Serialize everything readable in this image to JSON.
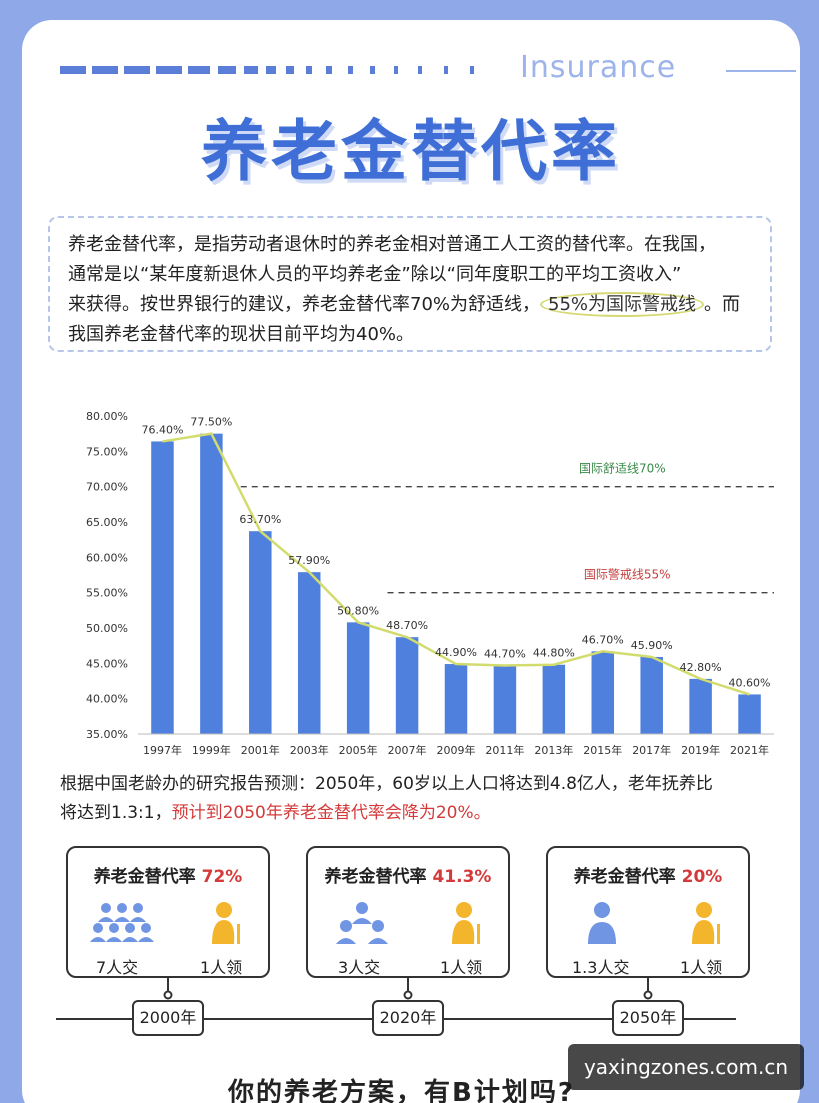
{
  "header": {
    "brand": "Insurance",
    "title": "养老金替代率"
  },
  "intro": {
    "line1": "养老金替代率，是指劳动者退休时的养老金相对普通工人工资的替代率。在我国，",
    "line2": "通常是以“某年度新退休人员的平均养老金”除以“同年度职工的平均工资收入”",
    "line3_before": "来获得。按世界银行的建议，养老金替代率70%为舒适线，",
    "line3_highlight": "55%为国际警戒线",
    "line3_after": "。而",
    "line4": "我国养老金替代率的现状目前平均为40%。"
  },
  "chart_data": {
    "type": "bar",
    "categories": [
      "1997年",
      "1999年",
      "2001年",
      "2003年",
      "2005年",
      "2007年",
      "2009年",
      "2011年",
      "2013年",
      "2015年",
      "2017年",
      "2019年",
      "2021年"
    ],
    "values": [
      76.4,
      77.5,
      63.7,
      57.9,
      50.8,
      48.7,
      44.9,
      44.7,
      44.8,
      46.7,
      45.9,
      42.8,
      40.6
    ],
    "value_labels": [
      "76.40%",
      "77.50%",
      "63.70%",
      "57.90%",
      "50.80%",
      "48.70%",
      "44.90%",
      "44.70%",
      "44.80%",
      "46.70%",
      "45.90%",
      "42.80%",
      "40.60%"
    ],
    "yticks": [
      "35.00%",
      "40.00%",
      "45.00%",
      "50.00%",
      "55.00%",
      "60.00%",
      "65.00%",
      "70.00%",
      "75.00%",
      "80.00%"
    ],
    "ylim": [
      35,
      80
    ],
    "reference_lines": [
      {
        "label": "国际舒适线70%",
        "value": 70,
        "color": "#3a8a4a"
      },
      {
        "label": "国际警戒线55%",
        "value": 55,
        "color": "#c44040"
      }
    ],
    "bar_color": "#4f80dd",
    "trend_color": "#d2dc6e"
  },
  "forecast": {
    "line1": "根据中国老龄办的研究报告预测：2050年，60岁以上人口将达到4.8亿人，老年抚养比",
    "line2_before": "将达到1.3:1，",
    "line2_red": "预计到2050年养老金替代率会降为20%。"
  },
  "scenarios": [
    {
      "title": "养老金替代率",
      "pct": "72%",
      "payers": "7人交",
      "receivers": "1人领",
      "year": "2000年"
    },
    {
      "title": "养老金替代率",
      "pct": "41.3%",
      "payers": "3人交",
      "receivers": "1人领",
      "year": "2020年"
    },
    {
      "title": "养老金替代率",
      "pct": "20%",
      "payers": "1.3人交",
      "receivers": "1人领",
      "year": "2050年"
    }
  ],
  "bottom": {
    "question": "你的养老方案，有B计划吗?"
  },
  "watermark": {
    "text": "yaxingzones.com.cn"
  },
  "colors": {
    "accent": "#3f6fd6",
    "background": "#8fa8e8",
    "alert": "#d43a3a",
    "elder_icon": "#f2b52c"
  }
}
